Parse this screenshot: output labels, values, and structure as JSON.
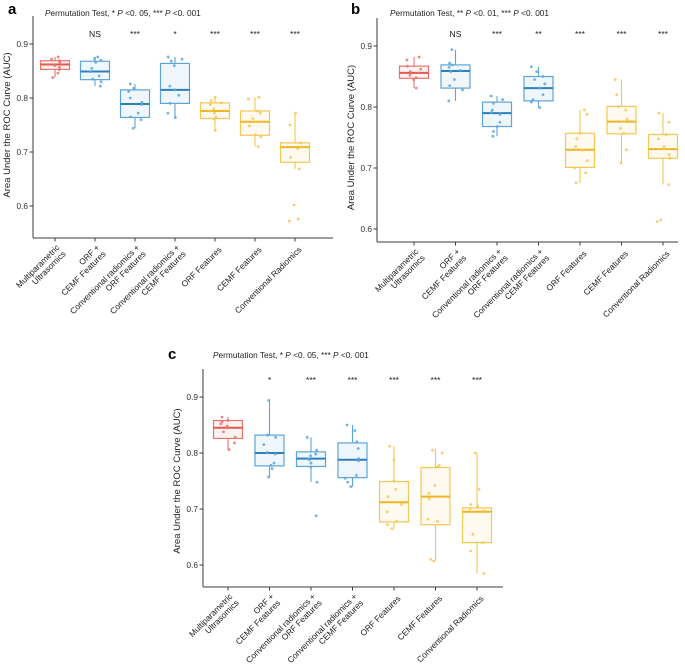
{
  "palette": {
    "red": {
      "line": "#E8746C",
      "median": "#E2574E"
    },
    "blue": {
      "line": "#5CA4DA",
      "median": "#2E7FBE"
    },
    "yellow": {
      "line": "#F4C653",
      "median": "#EFB622"
    }
  },
  "chart_data": [
    {
      "type": "boxplot",
      "panel": "a",
      "title": "Permutation Test, * P <0. 05, *** P <0. 001",
      "ylabel": "Area Under the ROC Curve (AUC)",
      "yticks": [
        0.6,
        0.7,
        0.8,
        0.9
      ],
      "ylim": [
        0.54,
        0.95
      ],
      "grid": false,
      "categories": [
        [
          "Multiparametric",
          "Ultrasomics"
        ],
        [
          "ORF +",
          "CEMF Features"
        ],
        [
          "Conventional radiomics +",
          "ORF Features"
        ],
        [
          "Conventional radiomics +",
          "CEMF Features"
        ],
        [
          "ORF Features"
        ],
        [
          "CEMF Features"
        ],
        [
          "Conventional Radiomics"
        ]
      ],
      "significance": [
        "NS",
        "***",
        "*",
        "***",
        "***",
        "***"
      ],
      "series": [
        {
          "name": "Multiparametric Ultrasomics",
          "color": "red",
          "whislo": 0.838,
          "q1": 0.853,
          "med": 0.862,
          "q3": 0.869,
          "whishi": 0.876,
          "points": [
            0.876,
            0.872,
            0.869,
            0.866,
            0.862,
            0.86,
            0.857,
            0.852,
            0.846,
            0.838
          ]
        },
        {
          "name": "ORF + CEMF Features",
          "color": "blue",
          "whislo": 0.822,
          "q1": 0.834,
          "med": 0.849,
          "q3": 0.868,
          "whishi": 0.876,
          "points": [
            0.876,
            0.873,
            0.87,
            0.866,
            0.855,
            0.849,
            0.841,
            0.835,
            0.83,
            0.822
          ]
        },
        {
          "name": "Conventional radiomics + ORF Features",
          "color": "blue",
          "whislo": 0.744,
          "q1": 0.764,
          "med": 0.789,
          "q3": 0.815,
          "whishi": 0.826,
          "points": [
            0.826,
            0.818,
            0.812,
            0.8,
            0.792,
            0.788,
            0.772,
            0.765,
            0.76,
            0.744
          ]
        },
        {
          "name": "Conventional radiomics + CEMF Features",
          "color": "blue",
          "whislo": 0.764,
          "q1": 0.79,
          "med": 0.815,
          "q3": 0.864,
          "whishi": 0.876,
          "points": [
            0.876,
            0.872,
            0.868,
            0.86,
            0.822,
            0.815,
            0.805,
            0.79,
            0.772,
            0.764
          ]
        },
        {
          "name": "ORF Features",
          "color": "yellow",
          "whislo": 0.74,
          "q1": 0.762,
          "med": 0.776,
          "q3": 0.791,
          "whishi": 0.801,
          "points": [
            0.801,
            0.795,
            0.791,
            0.788,
            0.78,
            0.776,
            0.772,
            0.765,
            0.761,
            0.74
          ]
        },
        {
          "name": "CEMF Features",
          "color": "yellow",
          "whislo": 0.71,
          "q1": 0.731,
          "med": 0.756,
          "q3": 0.776,
          "whishi": 0.801,
          "points": [
            0.801,
            0.798,
            0.776,
            0.772,
            0.762,
            0.756,
            0.748,
            0.732,
            0.728,
            0.71
          ]
        },
        {
          "name": "Conventional Radiomics",
          "color": "yellow",
          "whislo": 0.668,
          "q1": 0.681,
          "med": 0.709,
          "q3": 0.717,
          "whishi": 0.772,
          "points": [
            0.772,
            0.75,
            0.717,
            0.71,
            0.706,
            0.69,
            0.669,
            0.602,
            0.576,
            0.572
          ]
        }
      ]
    },
    {
      "type": "boxplot",
      "panel": "b",
      "title": "Permutation Test,  ** P <0. 01, *** P <0. 001",
      "ylabel": "Area Under the ROC Curve (AUC)",
      "yticks": [
        0.6,
        0.7,
        0.8,
        0.9
      ],
      "ylim": [
        0.58,
        0.95
      ],
      "grid": false,
      "categories": [
        [
          "Multiparametric",
          "Ultrasomics"
        ],
        [
          "ORF +",
          "CEMF Features"
        ],
        [
          "Conventional radiomics +",
          "ORF Features"
        ],
        [
          "Conventional radiomics +",
          "CEMF Features"
        ],
        [
          "ORF Features"
        ],
        [
          "CEMF Features"
        ],
        [
          "Conventional Radiomics"
        ]
      ],
      "significance": [
        "NS",
        "***",
        "**",
        "***",
        "***",
        "***"
      ],
      "series": [
        {
          "name": "Multiparametric Ultrasomics",
          "color": "red",
          "whislo": 0.831,
          "q1": 0.847,
          "med": 0.856,
          "q3": 0.867,
          "whishi": 0.882,
          "points": [
            0.882,
            0.877,
            0.867,
            0.862,
            0.858,
            0.856,
            0.852,
            0.848,
            0.845,
            0.831
          ]
        },
        {
          "name": "ORF + CEMF Features",
          "color": "blue",
          "whislo": 0.81,
          "q1": 0.831,
          "med": 0.859,
          "q3": 0.869,
          "whishi": 0.894,
          "points": [
            0.894,
            0.872,
            0.869,
            0.865,
            0.86,
            0.858,
            0.845,
            0.835,
            0.828,
            0.81
          ]
        },
        {
          "name": "Conventional radiomics + ORF Features",
          "color": "blue",
          "whislo": 0.752,
          "q1": 0.768,
          "med": 0.79,
          "q3": 0.808,
          "whishi": 0.818,
          "points": [
            0.818,
            0.812,
            0.806,
            0.795,
            0.791,
            0.788,
            0.775,
            0.768,
            0.76,
            0.752
          ]
        },
        {
          "name": "Conventional radiomics + CEMF Features",
          "color": "blue",
          "whislo": 0.799,
          "q1": 0.81,
          "med": 0.831,
          "q3": 0.85,
          "whishi": 0.866,
          "points": [
            0.866,
            0.858,
            0.85,
            0.845,
            0.838,
            0.831,
            0.82,
            0.812,
            0.808,
            0.799
          ]
        },
        {
          "name": "ORF Features",
          "color": "yellow",
          "whislo": 0.676,
          "q1": 0.701,
          "med": 0.73,
          "q3": 0.757,
          "whishi": 0.795,
          "points": [
            0.795,
            0.788,
            0.757,
            0.748,
            0.735,
            0.729,
            0.712,
            0.7,
            0.692,
            0.676
          ]
        },
        {
          "name": "CEMF Features",
          "color": "yellow",
          "whislo": 0.708,
          "q1": 0.756,
          "med": 0.776,
          "q3": 0.801,
          "whishi": 0.845,
          "points": [
            0.845,
            0.82,
            0.801,
            0.795,
            0.78,
            0.776,
            0.765,
            0.757,
            0.73,
            0.708
          ]
        },
        {
          "name": "Conventional Radiomics",
          "color": "yellow",
          "whislo": 0.673,
          "q1": 0.716,
          "med": 0.731,
          "q3": 0.755,
          "whishi": 0.79,
          "points": [
            0.79,
            0.775,
            0.755,
            0.748,
            0.735,
            0.731,
            0.722,
            0.716,
            0.673,
            0.615,
            0.612
          ]
        }
      ]
    },
    {
      "type": "boxplot",
      "panel": "c",
      "title": "Permutation Test,  * P <0. 05, *** P <0. 001",
      "ylabel": "Area Under the ROC Curve (AUC)",
      "yticks": [
        0.6,
        0.7,
        0.8,
        0.9
      ],
      "ylim": [
        0.56,
        0.96
      ],
      "grid": false,
      "categories": [
        [
          "Multiparametric",
          "Ultrasomics"
        ],
        [
          "ORF +",
          "CEMF Features"
        ],
        [
          "Conventional radiomics +",
          "ORF Features"
        ],
        [
          "Conventional radiomics +",
          "CEMF Features"
        ],
        [
          "ORF Features"
        ],
        [
          "CEMF Features"
        ],
        [
          "Conventional Radiomics"
        ]
      ],
      "significance": [
        "*",
        "***",
        "***",
        "***",
        "***",
        "***"
      ],
      "series": [
        {
          "name": "Multiparametric Ultrasomics",
          "color": "red",
          "whislo": 0.806,
          "q1": 0.826,
          "med": 0.845,
          "q3": 0.858,
          "whishi": 0.864,
          "points": [
            0.864,
            0.858,
            0.856,
            0.852,
            0.848,
            0.845,
            0.838,
            0.828,
            0.818,
            0.806
          ]
        },
        {
          "name": "ORF + CEMF Features",
          "color": "blue",
          "whislo": 0.757,
          "q1": 0.777,
          "med": 0.8,
          "q3": 0.832,
          "whishi": 0.894,
          "points": [
            0.894,
            0.832,
            0.828,
            0.815,
            0.801,
            0.798,
            0.782,
            0.778,
            0.772,
            0.757
          ]
        },
        {
          "name": "Conventional radiomics + ORF Features",
          "color": "blue",
          "whislo": 0.748,
          "q1": 0.776,
          "med": 0.79,
          "q3": 0.802,
          "whishi": 0.828,
          "points": [
            0.828,
            0.805,
            0.798,
            0.795,
            0.79,
            0.788,
            0.782,
            0.775,
            0.748,
            0.688
          ]
        },
        {
          "name": "Conventional radiomics + CEMF Features",
          "color": "blue",
          "whislo": 0.74,
          "q1": 0.756,
          "med": 0.788,
          "q3": 0.818,
          "whishi": 0.85,
          "points": [
            0.85,
            0.84,
            0.82,
            0.808,
            0.79,
            0.786,
            0.76,
            0.755,
            0.748,
            0.74
          ]
        },
        {
          "name": "ORF Features",
          "color": "yellow",
          "whislo": 0.665,
          "q1": 0.677,
          "med": 0.712,
          "q3": 0.749,
          "whishi": 0.812,
          "points": [
            0.812,
            0.788,
            0.75,
            0.735,
            0.722,
            0.708,
            0.695,
            0.678,
            0.672,
            0.665
          ]
        },
        {
          "name": "CEMF Features",
          "color": "yellow",
          "whislo": 0.608,
          "q1": 0.672,
          "med": 0.722,
          "q3": 0.774,
          "whishi": 0.808,
          "points": [
            0.805,
            0.8,
            0.778,
            0.775,
            0.742,
            0.728,
            0.718,
            0.682,
            0.678,
            0.61,
            0.607
          ]
        },
        {
          "name": "Conventional Radiomics",
          "color": "yellow",
          "whislo": 0.585,
          "q1": 0.64,
          "med": 0.695,
          "q3": 0.702,
          "whishi": 0.8,
          "points": [
            0.8,
            0.735,
            0.708,
            0.705,
            0.7,
            0.697,
            0.655,
            0.64,
            0.625,
            0.585
          ]
        }
      ]
    }
  ]
}
